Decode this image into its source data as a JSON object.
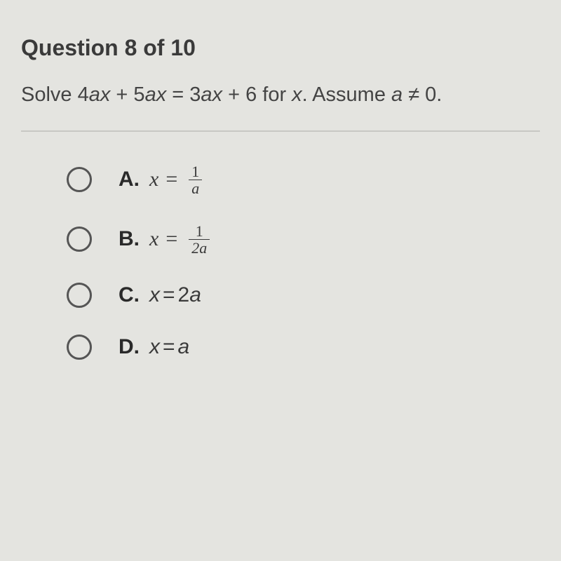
{
  "header": {
    "title": "Question 8 of 10"
  },
  "prompt": {
    "text_before": "Solve 4",
    "ax1": "ax",
    "plus1": " + 5",
    "ax2": "ax",
    "equals1": " = 3",
    "ax3": "ax",
    "plus2": " + 6 for ",
    "xvar": "x",
    "assume": ". Assume ",
    "avar": "a",
    "noteq": " ≠ 0."
  },
  "options": [
    {
      "label": "A.",
      "lhs": "x",
      "eq": "=",
      "type": "fraction",
      "num": "1",
      "den": "a"
    },
    {
      "label": "B.",
      "lhs": "x",
      "eq": "=",
      "type": "fraction",
      "num": "1",
      "den": "2a"
    },
    {
      "label": "C.",
      "lhs": "x",
      "eq": "=",
      "type": "plain",
      "rhs_num": "2",
      "rhs_var": "a"
    },
    {
      "label": "D.",
      "lhs": "x",
      "eq": "=",
      "type": "plain",
      "rhs_num": "",
      "rhs_var": "a"
    }
  ],
  "style": {
    "background": "#e4e4e0",
    "text_color": "#3a3a3a",
    "radio_border": "#555",
    "divider_color": "#c8c8c4",
    "header_fontsize": 32,
    "prompt_fontsize": 29,
    "option_fontsize": 30,
    "fraction_fontsize": 22
  }
}
